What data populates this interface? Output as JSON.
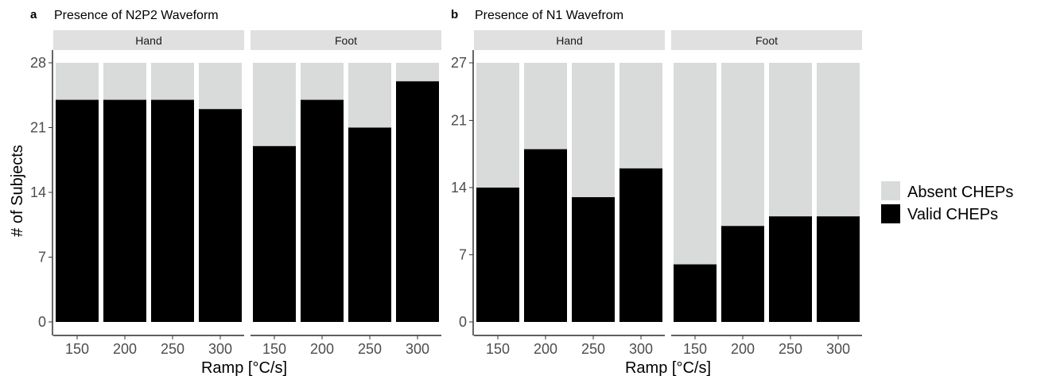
{
  "colors": {
    "absent": "#d9dbdb",
    "valid": "#000000",
    "strip": "#e0e0e0"
  },
  "legend": {
    "entries": [
      {
        "label": "Absent CHEPs",
        "color": "#d9dbdb"
      },
      {
        "label": "Valid CHEPs",
        "color": "#000000"
      }
    ]
  },
  "chart_data": [
    {
      "type": "bar",
      "stacked": true,
      "panel_letter": "a",
      "title": "Presence of N2P2 Waveform",
      "xlabel": "Ramp [°C/s]",
      "ylabel": "# of Subjects",
      "ylim": [
        0,
        28
      ],
      "yticks": [
        "0",
        "7",
        "14",
        "21",
        "28"
      ],
      "categories": [
        "150",
        "200",
        "250",
        "300"
      ],
      "facets": [
        {
          "label": "Hand",
          "series": [
            {
              "name": "Valid CHEPs",
              "values": [
                24,
                24,
                24,
                23
              ]
            },
            {
              "name": "Absent CHEPs",
              "values": [
                4,
                4,
                4,
                5
              ]
            }
          ]
        },
        {
          "label": "Foot",
          "series": [
            {
              "name": "Valid CHEPs",
              "values": [
                19,
                24,
                21,
                26
              ]
            },
            {
              "name": "Absent CHEPs",
              "values": [
                9,
                4,
                7,
                2
              ]
            }
          ]
        }
      ]
    },
    {
      "type": "bar",
      "stacked": true,
      "panel_letter": "b",
      "title": "Presence of N1 Wavefrom",
      "xlabel": "Ramp [°C/s]",
      "ylabel": "",
      "ylim": [
        0,
        27
      ],
      "yticks": [
        "0",
        "7",
        "14",
        "21",
        "27"
      ],
      "categories": [
        "150",
        "200",
        "250",
        "300"
      ],
      "facets": [
        {
          "label": "Hand",
          "series": [
            {
              "name": "Valid CHEPs",
              "values": [
                14,
                18,
                13,
                16
              ]
            },
            {
              "name": "Absent CHEPs",
              "values": [
                13,
                9,
                14,
                11
              ]
            }
          ]
        },
        {
          "label": "Foot",
          "series": [
            {
              "name": "Valid CHEPs",
              "values": [
                6,
                10,
                11,
                11
              ]
            },
            {
              "name": "Absent CHEPs",
              "values": [
                21,
                17,
                16,
                16
              ]
            }
          ]
        }
      ]
    }
  ]
}
